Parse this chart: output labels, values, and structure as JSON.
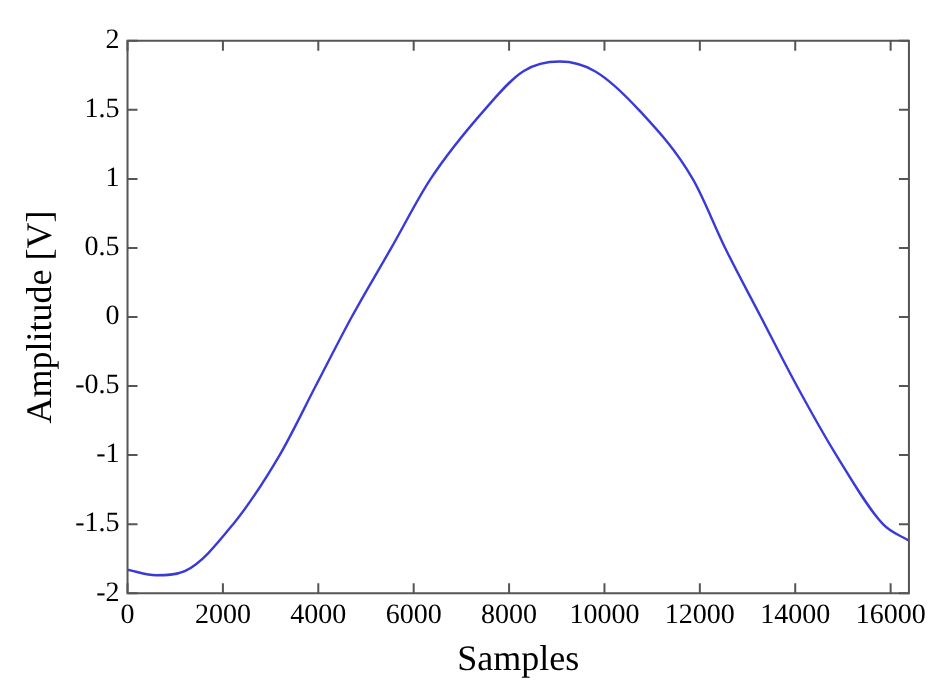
{
  "chart_data": {
    "type": "line",
    "xlabel": "Samples",
    "ylabel": "Amplitude [V]",
    "grid": false,
    "legend": false,
    "marker": "none",
    "line_style": "solid",
    "xlim": [
      0,
      16384
    ],
    "ylim": [
      -2,
      2
    ],
    "xticks": [
      0,
      2000,
      4000,
      6000,
      8000,
      10000,
      12000,
      14000,
      16000
    ],
    "yticks": [
      -2,
      -1.5,
      -1,
      -0.5,
      0,
      0.5,
      1,
      1.5,
      2
    ],
    "series": [
      {
        "color": "#3a3ad8",
        "x": [
          0,
          600,
          1200,
          2215,
          3190,
          3945,
          4700,
          5530,
          6355,
          7485,
          8300,
          9065,
          9800,
          10720,
          11850,
          12530,
          13280,
          14035,
          14860,
          15840,
          16384
        ],
        "values": [
          -1.83,
          -1.87,
          -1.84,
          -1.5,
          -1.0,
          -0.5,
          0,
          0.5,
          1.0,
          1.5,
          1.78,
          1.85,
          1.78,
          1.5,
          1.0,
          0.5,
          0,
          -0.5,
          -1.0,
          -1.5,
          -1.62
        ]
      }
    ]
  }
}
